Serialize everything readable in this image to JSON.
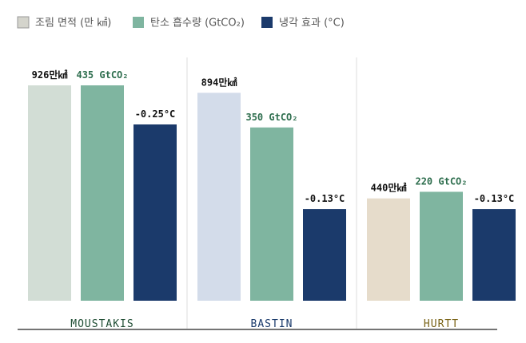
{
  "chart_data": {
    "type": "bar",
    "categories": [
      "MOUSTAKIS",
      "BASTIN",
      "HURTT"
    ],
    "category_colors": [
      "#1f4d33",
      "#1a3a6b",
      "#7a6418"
    ],
    "series": [
      {
        "name": "조림 면적 (만 ㎢)",
        "color": "#d4d4cc",
        "bar_colors": [
          "#d2ddd5",
          "#d3dcea",
          "#e6dccb"
        ],
        "label_color": "#111111",
        "values": [
          926,
          894,
          440
        ],
        "value_labels": [
          "926만㎢",
          "894만㎢",
          "440만㎢"
        ]
      },
      {
        "name": "탄소 흡수량 (GtCO₂)",
        "color": "#7fb5a0",
        "bar_colors": [
          "#7fb5a0",
          "#7fb5a0",
          "#7fb5a0"
        ],
        "label_color": "#2e6e4e",
        "values": [
          435,
          350,
          220
        ],
        "value_labels": [
          "435 GtCO₂",
          "350 GtCO₂",
          "220 GtCO₂"
        ]
      },
      {
        "name": "냉각 효과 (°C)",
        "color": "#1b3a6b",
        "bar_colors": [
          "#1b3a6b",
          "#1b3a6b",
          "#1b3a6b"
        ],
        "label_color": "#111111",
        "values": [
          -0.25,
          -0.13,
          -0.13
        ],
        "value_labels": [
          "-0.25°C",
          "-0.13°C",
          "-0.13°C"
        ]
      }
    ]
  }
}
